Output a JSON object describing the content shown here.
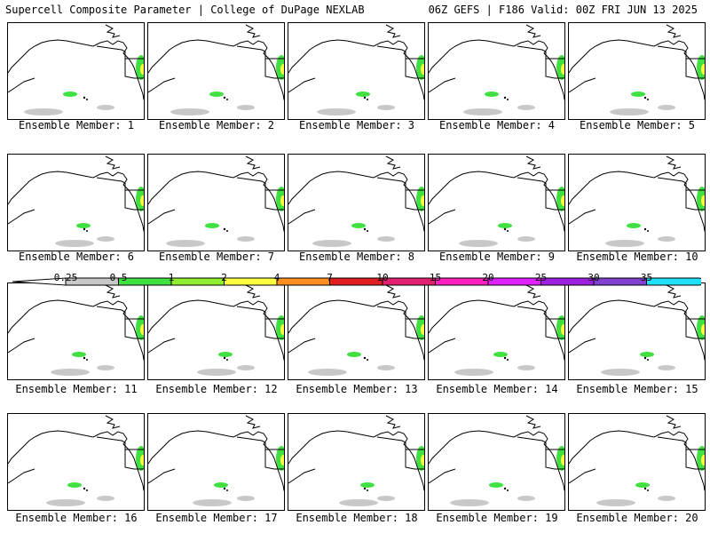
{
  "header": {
    "left": "Supercell Composite Parameter | College of DuPage NEXLAB",
    "right": "06Z GEFS | F186 Valid: 00Z FRI JUN 13 2025"
  },
  "members": [
    {
      "label": "Ensemble Member: 1"
    },
    {
      "label": "Ensemble Member: 2"
    },
    {
      "label": "Ensemble Member: 3"
    },
    {
      "label": "Ensemble Member: 4"
    },
    {
      "label": "Ensemble Member: 5"
    },
    {
      "label": "Ensemble Member: 6"
    },
    {
      "label": "Ensemble Member: 7"
    },
    {
      "label": "Ensemble Member: 8"
    },
    {
      "label": "Ensemble Member: 9"
    },
    {
      "label": "Ensemble Member: 10"
    },
    {
      "label": "Ensemble Member: 11"
    },
    {
      "label": "Ensemble Member: 12"
    },
    {
      "label": "Ensemble Member: 13"
    },
    {
      "label": "Ensemble Member: 14"
    },
    {
      "label": "Ensemble Member: 15"
    },
    {
      "label": "Ensemble Member: 16"
    },
    {
      "label": "Ensemble Member: 17"
    },
    {
      "label": "Ensemble Member: 18"
    },
    {
      "label": "Ensemble Member: 19"
    },
    {
      "label": "Ensemble Member: 20"
    }
  ],
  "colorbar": {
    "ticks": [
      "0.25",
      "0.5",
      "1",
      "2",
      "4",
      "7",
      "10",
      "15",
      "20",
      "25",
      "30",
      "35"
    ],
    "colors": [
      "#c8c8c8",
      "#40e040",
      "#90f030",
      "#ffff40",
      "#ff9020",
      "#e02020",
      "#e02070",
      "#ff20c0",
      "#e020ff",
      "#a020e0",
      "#8040d0",
      "#20e0ff"
    ]
  },
  "colors": {
    "gray": "#c8c8c8",
    "green": "#40e040",
    "lime": "#90f030",
    "yellow": "#ffff40",
    "orange": "#ff9020"
  }
}
